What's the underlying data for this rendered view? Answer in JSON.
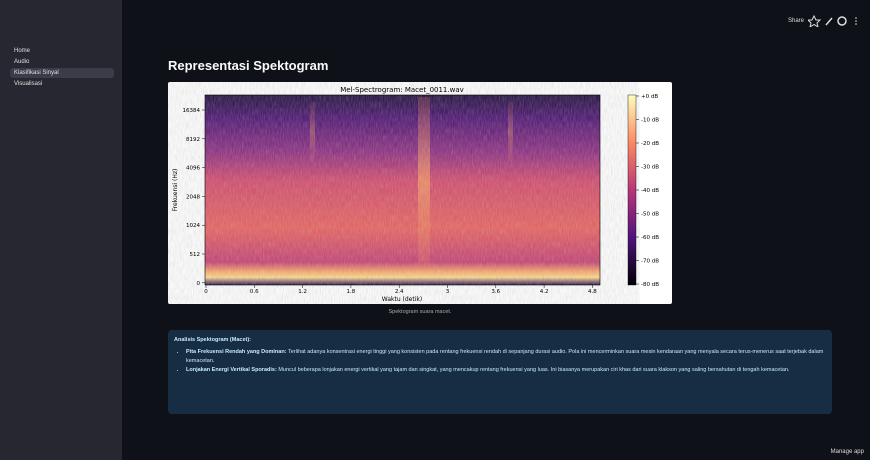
{
  "sidebar": {
    "items": [
      "Home",
      "Audio",
      "Klasifikasi Sinyal",
      "Visualisasi"
    ],
    "active": 2
  },
  "toolbar": {
    "share": "Share"
  },
  "main": {
    "title": "Representasi Spektogram"
  },
  "figure": {
    "title": "Mel-Spectrogram: Macet_0011.wav",
    "ylabel": "Frekuensi (Hz)",
    "xlabel": "Waktu (detik)",
    "yticks": [
      "16384",
      "8192",
      "4096",
      "2048",
      "1024",
      "512",
      "0"
    ],
    "xticks": [
      "0",
      "0.6",
      "1.2",
      "1.8",
      "2.4",
      "3",
      "3.6",
      "4.2",
      "4.8"
    ],
    "colorbar": [
      "+0 dB",
      "-10 dB",
      "-20 dB",
      "-30 dB",
      "-40 dB",
      "-50 dB",
      "-60 dB",
      "-70 dB",
      "-80 dB"
    ],
    "caption": "Spektogram suara macet."
  },
  "info": {
    "heading": "Analisis Spektogram (Macet):",
    "bullets": [
      {
        "bold": "Pita Frekuensi Rendah yang Dominan:",
        "text": "Terlihat adanya konsentrasi energi tinggi yang konsisten pada rentang frekuensi rendah di sepanjang durasi audio. Pola ini mencerminkan suara mesin kendaraan yang menyala secara terus-menerus saat terjebak dalam kemacetan."
      },
      {
        "bold": "Lonjakan Energi Vertikal Sporadis:",
        "text": "Muncul beberapa lonjakan energi vertikal yang tajam dan singkat, yang mencakup rentang frekuensi yang luas. Ini biasanya merupakan ciri khas dari suara klakson yang saling bersahutan di tengah kemacetan."
      }
    ]
  },
  "footer": {
    "manage": "Manage app"
  }
}
